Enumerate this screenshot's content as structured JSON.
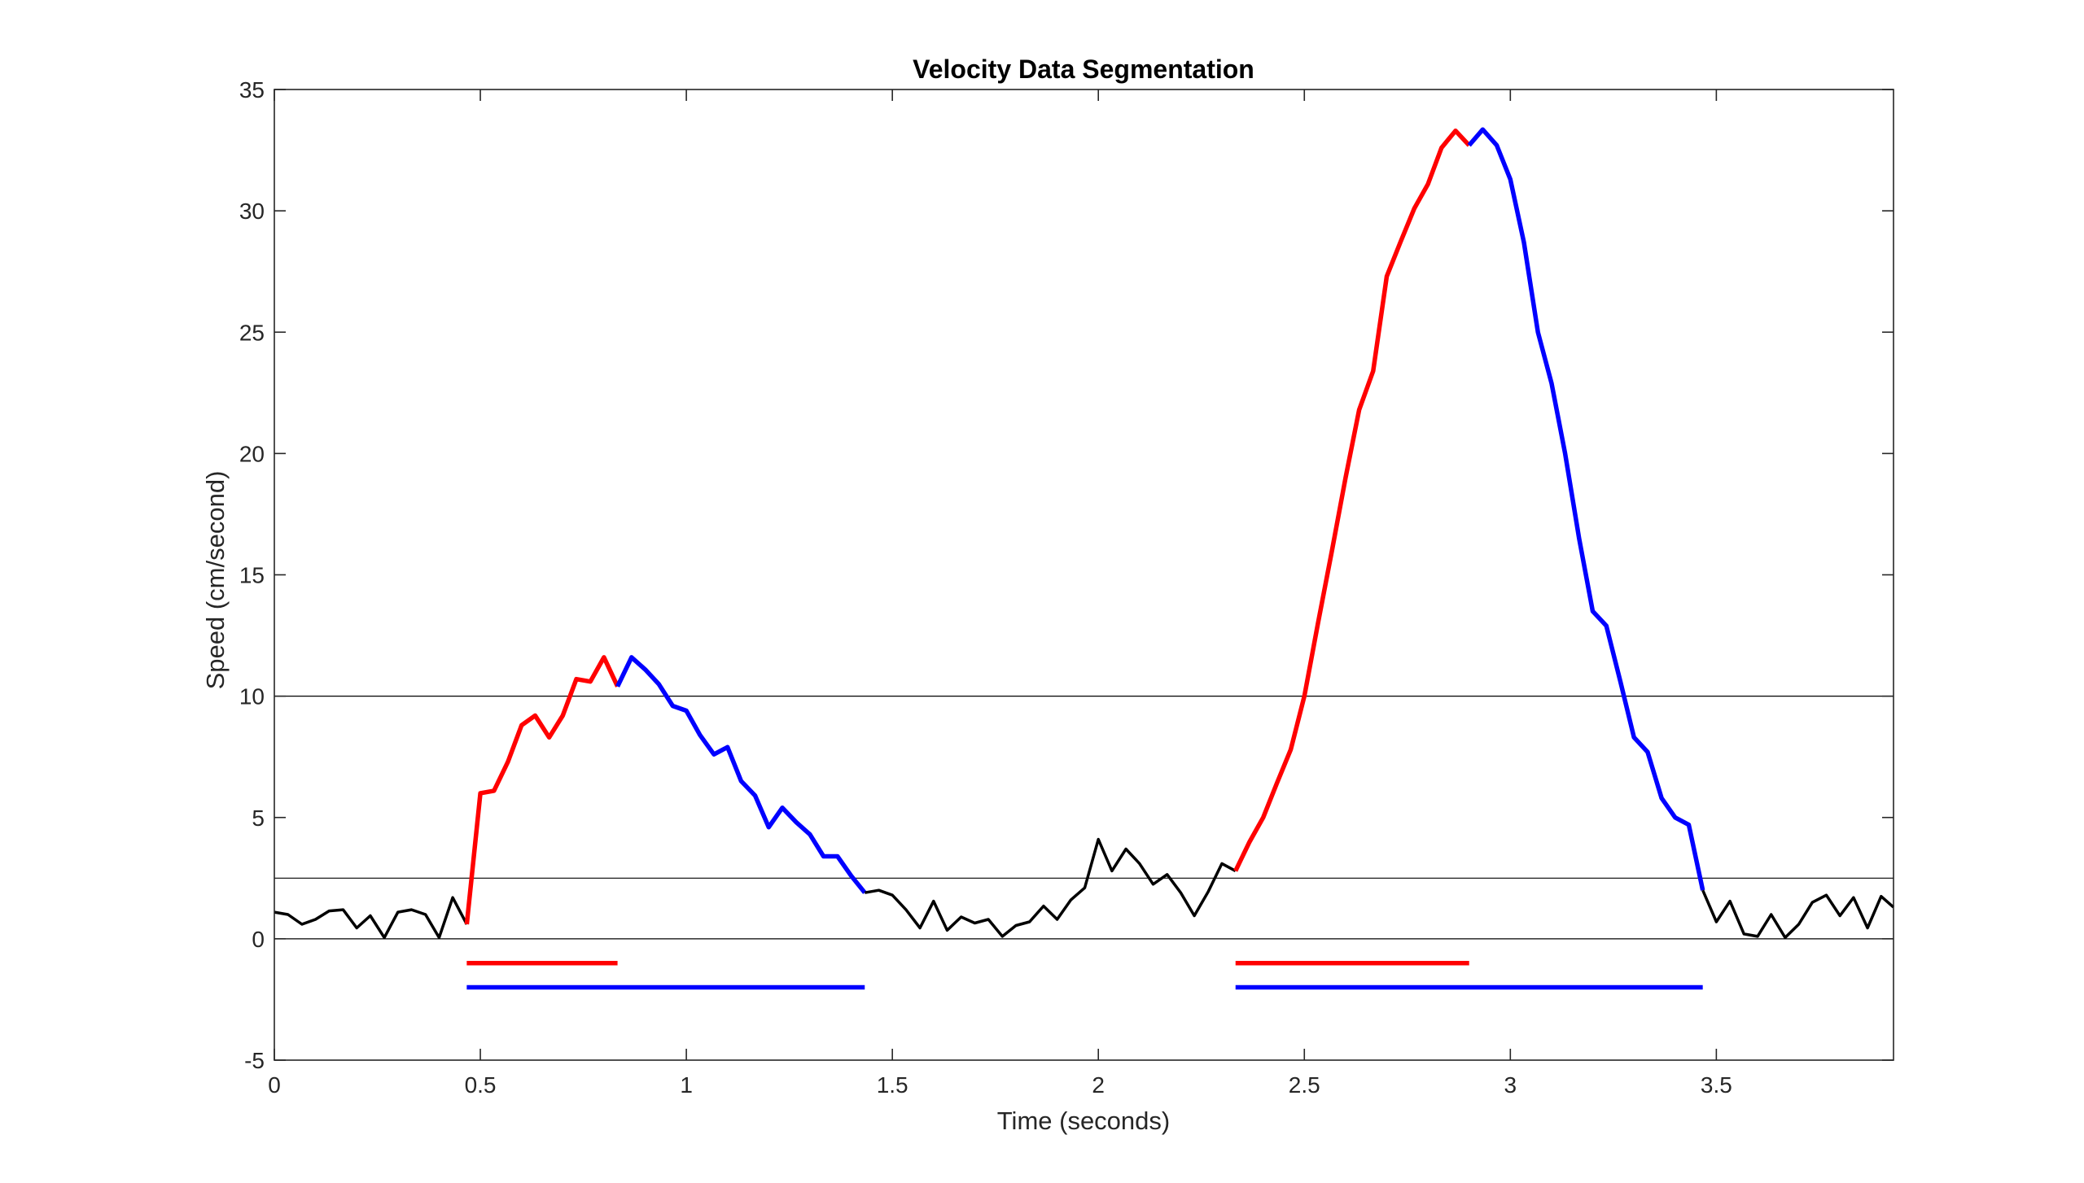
{
  "chart_data": {
    "type": "line",
    "title": "Velocity Data Segmentation",
    "xlabel": "Time (seconds)",
    "ylabel": "Speed (cm/second)",
    "xlim": [
      0,
      3.93
    ],
    "ylim": [
      -5,
      35
    ],
    "xticks": [
      0,
      0.5,
      1,
      1.5,
      2,
      2.5,
      3,
      3.5
    ],
    "xtick_labels": [
      "0",
      "0.5",
      "1",
      "1.5",
      "2",
      "2.5",
      "3",
      "3.5"
    ],
    "yticks": [
      -5,
      0,
      5,
      10,
      15,
      20,
      25,
      30,
      35
    ],
    "ytick_labels": [
      "-5",
      "0",
      "5",
      "10",
      "15",
      "20",
      "25",
      "30",
      "35"
    ],
    "grid": false,
    "hlines": [
      0,
      2.5,
      10
    ],
    "colors": {
      "baseline": "#000000",
      "rising": "#ff0000",
      "falling": "#0000ff",
      "reference": "#000000"
    },
    "series": [
      {
        "color": "#000000",
        "x": [
          0,
          0.033,
          0.067,
          0.1,
          0.133,
          0.167,
          0.2,
          0.233,
          0.267,
          0.3,
          0.333,
          0.367,
          0.4,
          0.433,
          0.467
        ],
        "y": [
          1.1,
          1.0,
          0.6,
          0.8,
          1.15,
          1.2,
          0.45,
          0.95,
          0.05,
          1.1,
          1.2,
          1.0,
          0.05,
          1.7,
          0.6
        ]
      },
      {
        "color": "#ff0000",
        "x": [
          0.467,
          0.5,
          0.533,
          0.567,
          0.6,
          0.633,
          0.667,
          0.7,
          0.733,
          0.767,
          0.8,
          0.833
        ],
        "y": [
          0.6,
          6.0,
          6.1,
          7.3,
          8.8,
          9.2,
          8.3,
          9.2,
          10.7,
          10.6,
          11.6,
          10.4
        ]
      },
      {
        "color": "#0000ff",
        "x": [
          0.833,
          0.867,
          0.9,
          0.933,
          0.967,
          1.0,
          1.033,
          1.067,
          1.1,
          1.133,
          1.167,
          1.2,
          1.233,
          1.267,
          1.3,
          1.333,
          1.367,
          1.4,
          1.433
        ],
        "y": [
          10.4,
          11.6,
          11.1,
          10.5,
          9.6,
          9.4,
          8.4,
          7.6,
          7.9,
          6.5,
          5.9,
          4.6,
          5.4,
          4.8,
          4.3,
          3.4,
          3.4,
          2.6,
          1.9
        ]
      },
      {
        "color": "#000000",
        "x": [
          1.433,
          1.467,
          1.5,
          1.533,
          1.567,
          1.6,
          1.633,
          1.667,
          1.7,
          1.733,
          1.767,
          1.8,
          1.833,
          1.867,
          1.9,
          1.933,
          1.967,
          2.0,
          2.033,
          2.067,
          2.1,
          2.133,
          2.167,
          2.2,
          2.233,
          2.267,
          2.3,
          2.333
        ],
        "y": [
          1.9,
          2.0,
          1.8,
          1.2,
          0.45,
          1.55,
          0.35,
          0.9,
          0.65,
          0.8,
          0.1,
          0.55,
          0.7,
          1.35,
          0.8,
          1.6,
          2.1,
          4.1,
          2.8,
          3.7,
          3.1,
          2.25,
          2.65,
          1.9,
          0.95,
          1.95,
          3.1,
          2.8
        ]
      },
      {
        "color": "#ff0000",
        "x": [
          2.333,
          2.367,
          2.4,
          2.433,
          2.467,
          2.5,
          2.533,
          2.567,
          2.6,
          2.633,
          2.667,
          2.7,
          2.733,
          2.767,
          2.8,
          2.833,
          2.867,
          2.9
        ],
        "y": [
          2.8,
          4.0,
          5.0,
          6.4,
          7.8,
          10.0,
          13.0,
          16.0,
          19.0,
          21.8,
          23.4,
          27.3,
          28.7,
          30.1,
          31.1,
          32.6,
          33.3,
          32.7
        ]
      },
      {
        "color": "#0000ff",
        "x": [
          2.9,
          2.933,
          2.967,
          3.0,
          3.033,
          3.067,
          3.1,
          3.133,
          3.167,
          3.2,
          3.233,
          3.267,
          3.3,
          3.333,
          3.367,
          3.4,
          3.433,
          3.467
        ],
        "y": [
          32.7,
          33.35,
          32.7,
          31.3,
          28.7,
          25.0,
          22.9,
          20.0,
          16.5,
          13.5,
          12.9,
          10.6,
          8.3,
          7.7,
          5.8,
          5.0,
          4.7,
          2.0
        ]
      },
      {
        "color": "#000000",
        "x": [
          3.467,
          3.5,
          3.533,
          3.567,
          3.6,
          3.633,
          3.667,
          3.7,
          3.733,
          3.767,
          3.8,
          3.833,
          3.867,
          3.9,
          3.93
        ],
        "y": [
          2.0,
          0.7,
          1.55,
          0.2,
          0.1,
          1.0,
          0.05,
          0.6,
          1.5,
          1.8,
          0.95,
          1.7,
          0.45,
          1.75,
          1.3
        ]
      }
    ],
    "segments": [
      {
        "color": "#ff0000",
        "x": [
          0.467,
          0.833
        ],
        "y": -1
      },
      {
        "color": "#0000ff",
        "x": [
          0.467,
          1.433
        ],
        "y": -2
      },
      {
        "color": "#ff0000",
        "x": [
          2.333,
          2.9
        ],
        "y": -1
      },
      {
        "color": "#0000ff",
        "x": [
          2.333,
          3.467
        ],
        "y": -2
      }
    ]
  }
}
